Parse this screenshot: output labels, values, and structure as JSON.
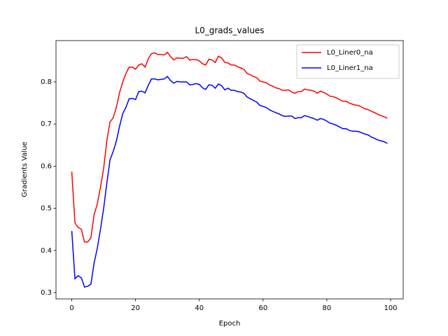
{
  "chart_data": {
    "type": "line",
    "title": "L0_grads_values",
    "xlabel": "Epoch",
    "ylabel": "Gradients Value",
    "x": [
      0,
      1,
      2,
      3,
      4,
      5,
      6,
      7,
      8,
      9,
      10,
      11,
      12,
      13,
      14,
      15,
      16,
      17,
      18,
      19,
      20,
      21,
      22,
      23,
      24,
      25,
      26,
      27,
      28,
      29,
      30,
      31,
      32,
      33,
      34,
      35,
      36,
      37,
      38,
      39,
      40,
      41,
      42,
      43,
      44,
      45,
      46,
      47,
      48,
      49,
      50,
      51,
      52,
      53,
      54,
      55,
      56,
      57,
      58,
      59,
      60,
      61,
      62,
      63,
      64,
      65,
      66,
      67,
      68,
      69,
      70,
      71,
      72,
      73,
      74,
      75,
      76,
      77,
      78,
      79,
      80,
      81,
      82,
      83,
      84,
      85,
      86,
      87,
      88,
      89,
      90,
      91,
      92,
      93,
      94,
      95,
      96,
      97,
      98,
      99
    ],
    "series": [
      {
        "name": "L0_Liner0_na",
        "color": "#ff0000",
        "values": [
          0.587,
          0.465,
          0.455,
          0.45,
          0.42,
          0.42,
          0.43,
          0.485,
          0.51,
          0.55,
          0.595,
          0.66,
          0.705,
          0.715,
          0.74,
          0.775,
          0.8,
          0.82,
          0.835,
          0.835,
          0.83,
          0.84,
          0.843,
          0.835,
          0.855,
          0.867,
          0.869,
          0.865,
          0.865,
          0.864,
          0.87,
          0.86,
          0.852,
          0.857,
          0.856,
          0.856,
          0.86,
          0.852,
          0.853,
          0.853,
          0.85,
          0.843,
          0.84,
          0.854,
          0.852,
          0.846,
          0.861,
          0.857,
          0.846,
          0.845,
          0.84,
          0.84,
          0.836,
          0.833,
          0.83,
          0.82,
          0.817,
          0.813,
          0.81,
          0.802,
          0.8,
          0.798,
          0.793,
          0.79,
          0.786,
          0.784,
          0.78,
          0.78,
          0.781,
          0.776,
          0.773,
          0.777,
          0.777,
          0.783,
          0.781,
          0.78,
          0.778,
          0.773,
          0.778,
          0.775,
          0.771,
          0.766,
          0.765,
          0.762,
          0.758,
          0.754,
          0.754,
          0.75,
          0.747,
          0.745,
          0.744,
          0.74,
          0.736,
          0.734,
          0.73,
          0.727,
          0.723,
          0.72,
          0.717,
          0.714
        ]
      },
      {
        "name": "L0_Liner1_na",
        "color": "#0000ff",
        "values": [
          0.446,
          0.333,
          0.34,
          0.335,
          0.313,
          0.315,
          0.32,
          0.37,
          0.405,
          0.45,
          0.5,
          0.56,
          0.615,
          0.635,
          0.66,
          0.695,
          0.725,
          0.74,
          0.76,
          0.761,
          0.758,
          0.777,
          0.778,
          0.774,
          0.792,
          0.807,
          0.807,
          0.805,
          0.806,
          0.807,
          0.813,
          0.803,
          0.797,
          0.801,
          0.8,
          0.8,
          0.8,
          0.793,
          0.794,
          0.796,
          0.794,
          0.786,
          0.782,
          0.793,
          0.792,
          0.785,
          0.795,
          0.791,
          0.781,
          0.785,
          0.78,
          0.78,
          0.777,
          0.776,
          0.773,
          0.764,
          0.76,
          0.756,
          0.752,
          0.744,
          0.742,
          0.739,
          0.734,
          0.73,
          0.727,
          0.724,
          0.72,
          0.718,
          0.719,
          0.719,
          0.713,
          0.715,
          0.715,
          0.72,
          0.718,
          0.715,
          0.713,
          0.709,
          0.713,
          0.711,
          0.707,
          0.702,
          0.7,
          0.697,
          0.693,
          0.689,
          0.689,
          0.685,
          0.683,
          0.683,
          0.682,
          0.679,
          0.676,
          0.674,
          0.669,
          0.666,
          0.662,
          0.66,
          0.658,
          0.654
        ]
      }
    ],
    "xlim": [
      -4.95,
      103.95
    ],
    "xticks": [
      0,
      20,
      40,
      60,
      80,
      100
    ],
    "ylim": [
      0.285,
      0.898
    ],
    "yticks": [
      0.3,
      0.4,
      0.5,
      0.6,
      0.7,
      0.8
    ],
    "legend": "upper right",
    "grid": false
  }
}
